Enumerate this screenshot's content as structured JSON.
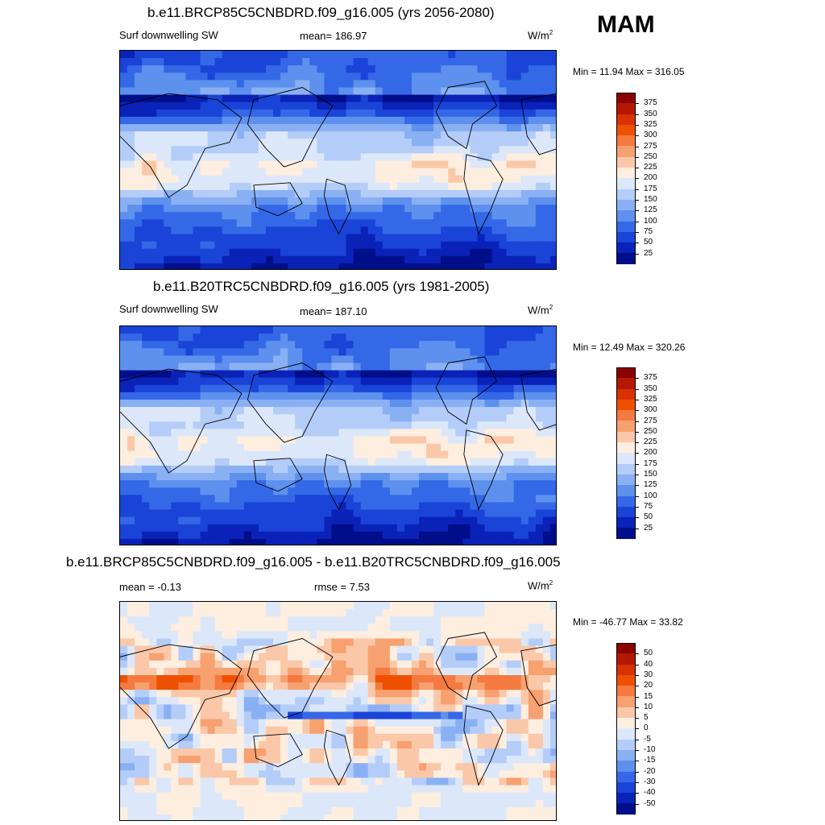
{
  "season": "MAM",
  "panels": [
    {
      "title": "b.e11.BRCP85C5CNBDRD.f09_g16.005 (yrs 2056-2080)",
      "left_label": "Surf downwelling SW",
      "center_label": "mean= 186.97",
      "units": "W/m",
      "units_sup": "2",
      "minmax": "Min =  11.94 Max = 316.05",
      "levels": [
        "375",
        "350",
        "325",
        "300",
        "275",
        "250",
        "225",
        "200",
        "175",
        "150",
        "125",
        "100",
        "75",
        "50",
        "25"
      ],
      "colors": [
        "#8b0000",
        "#b51800",
        "#d93200",
        "#ee5000",
        "#f47a40",
        "#f7a070",
        "#fac8a8",
        "#fdeee0",
        "#dce8fa",
        "#b4cdf8",
        "#8ab0f4",
        "#5e90ee",
        "#3568e6",
        "#1a44d8",
        "#0a22b8",
        "#000e8a"
      ],
      "field": "clim"
    },
    {
      "title": "b.e11.B20TRC5CNBDRD.f09_g16.005 (yrs 1981-2005)",
      "left_label": "Surf downwelling SW",
      "center_label": "mean= 187.10",
      "units": "W/m",
      "units_sup": "2",
      "minmax": "Min =  12.49 Max = 320.26",
      "levels": [
        "375",
        "350",
        "325",
        "300",
        "275",
        "250",
        "225",
        "200",
        "175",
        "150",
        "125",
        "100",
        "75",
        "50",
        "25"
      ],
      "colors": [
        "#8b0000",
        "#b51800",
        "#d93200",
        "#ee5000",
        "#f47a40",
        "#f7a070",
        "#fac8a8",
        "#fdeee0",
        "#dce8fa",
        "#b4cdf8",
        "#8ab0f4",
        "#5e90ee",
        "#3568e6",
        "#1a44d8",
        "#0a22b8",
        "#000e8a"
      ],
      "field": "clim"
    },
    {
      "title": "b.e11.BRCP85C5CNBDRD.f09_g16.005 - b.e11.B20TRC5CNBDRD.f09_g16.005",
      "left_label": "mean =  -0.13",
      "center_label": "rmse =   7.53",
      "units": "W/m",
      "units_sup": "2",
      "minmax": "Min = -46.77 Max =  33.82",
      "levels": [
        "50",
        "40",
        "30",
        "20",
        "15",
        "10",
        "5",
        "0",
        "-5",
        "-10",
        "-15",
        "-20",
        "-30",
        "-40",
        "-50"
      ],
      "colors": [
        "#8b0000",
        "#b51800",
        "#d93200",
        "#ee5000",
        "#f47a40",
        "#f7a070",
        "#fac8a8",
        "#fdeee0",
        "#dce8fa",
        "#b4cdf8",
        "#8ab0f4",
        "#5e90ee",
        "#3568e6",
        "#1a44d8",
        "#0a22b8",
        "#000e8a"
      ],
      "field": "diff"
    }
  ]
}
